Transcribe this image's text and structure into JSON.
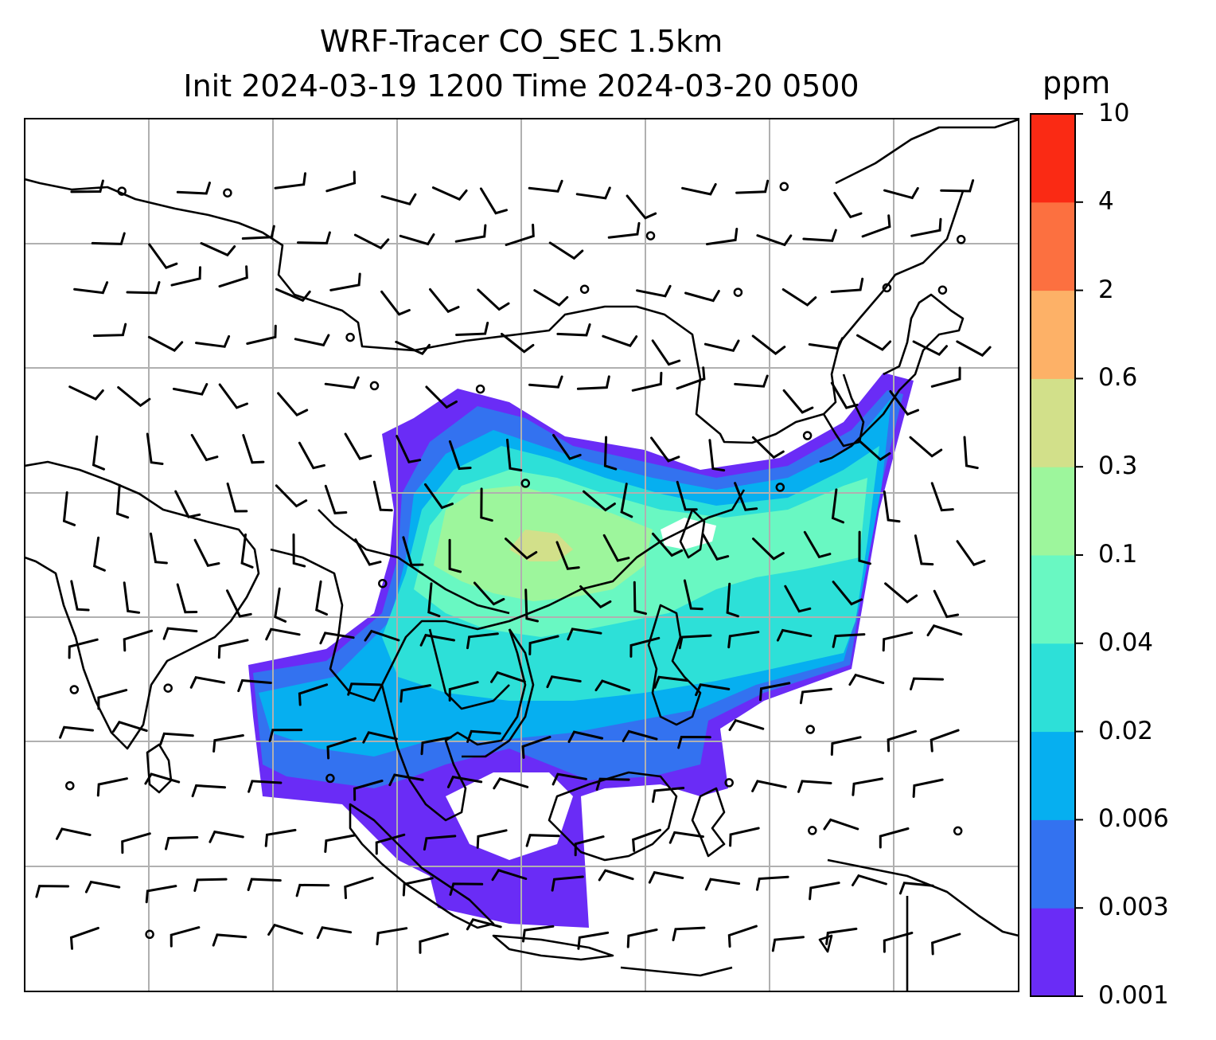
{
  "title": {
    "line1": "WRF-Tracer CO_SEC 1.5km",
    "line2": "Init 2024-03-19 1200 Time 2024-03-20 0500"
  },
  "colorbar": {
    "unit": "ppm",
    "ticks": [
      "0.001",
      "0.003",
      "0.006",
      "0.02",
      "0.04",
      "0.1",
      "0.3",
      "0.6",
      "2",
      "4",
      "10"
    ],
    "colors": [
      "#6a2cf6",
      "#3372f0",
      "#06aff0",
      "#2de0d8",
      "#69f8c2",
      "#9df69c",
      "#d2e08a",
      "#fdb167",
      "#fc7040",
      "#fa2a14"
    ]
  },
  "map": {
    "gridlines": true,
    "coastline_color": "#000000",
    "grid_color": "#b0b0b0"
  }
}
